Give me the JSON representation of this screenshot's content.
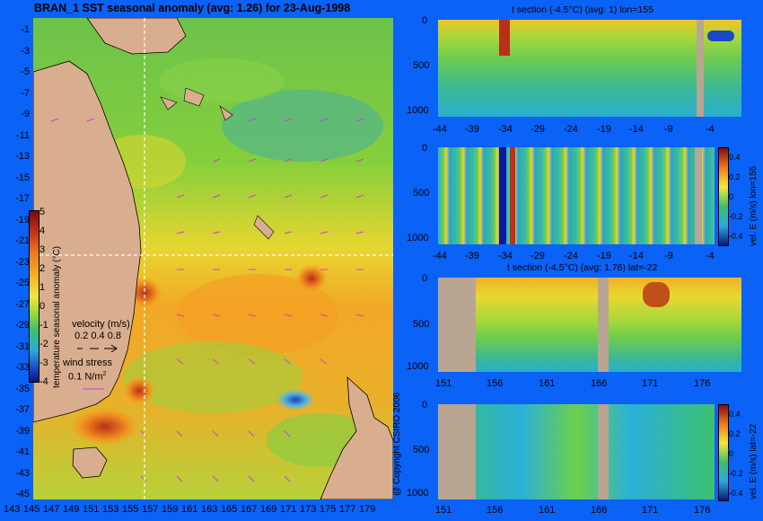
{
  "colors": {
    "background": "#0a62f6",
    "land": "#d9ae8f",
    "section_mask": "#b8a592",
    "wind_arrows": "#d43ad4",
    "crosshair": "#ffffff"
  },
  "figure": {
    "map_title": "BRAN_1  SST seasonal anomaly (avg: 1.26) for 23-Aug-1998",
    "copyright": "@ Copyright CSIRO 2006"
  },
  "map": {
    "y_ticks": [
      "-1",
      "-3",
      "-5",
      "-7",
      "-9",
      "-11",
      "-13",
      "-15",
      "-17",
      "-19",
      "-21",
      "-23",
      "-25",
      "-27",
      "-29",
      "-31",
      "-33",
      "-35",
      "-37",
      "-39",
      "-41",
      "-43",
      "-45"
    ],
    "x_ticks": [
      "143",
      "145",
      "147",
      "149",
      "151",
      "153",
      "155",
      "157",
      "159",
      "161",
      "163",
      "165",
      "167",
      "169",
      "171",
      "173",
      "175",
      "177",
      "179"
    ],
    "crosshair": {
      "lon": 155,
      "lat": -22
    },
    "colorbar": {
      "ticks": [
        "5",
        "4",
        "3",
        "2",
        "1",
        "0",
        "-1",
        "-2",
        "-3",
        "-4"
      ],
      "label": "temperature seasonal anomaly (°C)",
      "range": [
        -4,
        5
      ]
    },
    "legend": {
      "velocity_label": "velocity (m/s)",
      "velocity_values": "0.2 0.4 0.8",
      "wind_label": "wind stress",
      "wind_value": "0.1 N/m",
      "wind_unit_sup": "2"
    }
  },
  "panels": [
    {
      "id": "t-section-lon",
      "title": "t section (-4.5°C) (avg: 1) lon=155",
      "y_ticks": [
        "0",
        "500",
        "1000"
      ],
      "x_ticks": [
        "-44",
        "-39",
        "-34",
        "-29",
        "-24",
        "-19",
        "-14",
        "-9",
        "-4"
      ],
      "colorbar": null
    },
    {
      "id": "vel-section-lon",
      "title": "",
      "y_ticks": [
        "0",
        "500",
        "1000"
      ],
      "x_ticks": [
        "-44",
        "-39",
        "-34",
        "-29",
        "-24",
        "-19",
        "-14",
        "-9",
        "-4"
      ],
      "colorbar": {
        "label": "vel. E (m/s) lon=155",
        "ticks": [
          "0.4",
          "0.2",
          "0",
          "-0.2",
          "-0.4"
        ]
      }
    },
    {
      "id": "t-section-lat",
      "title": "t section (-4.5°C) (avg: 1.76) lat=-22",
      "y_ticks": [
        "0",
        "500",
        "1000"
      ],
      "x_ticks": [
        "151",
        "156",
        "161",
        "166",
        "171",
        "176"
      ],
      "colorbar": null
    },
    {
      "id": "vel-section-lat",
      "title": "",
      "y_ticks": [
        "0",
        "500",
        "1000"
      ],
      "x_ticks": [
        "151",
        "156",
        "161",
        "166",
        "171",
        "176"
      ],
      "colorbar": {
        "label": "vel. E (m/s) lat=-22",
        "ticks": [
          "0.4",
          "0.2",
          "0",
          "-0.2",
          "-0.4"
        ]
      }
    }
  ]
}
